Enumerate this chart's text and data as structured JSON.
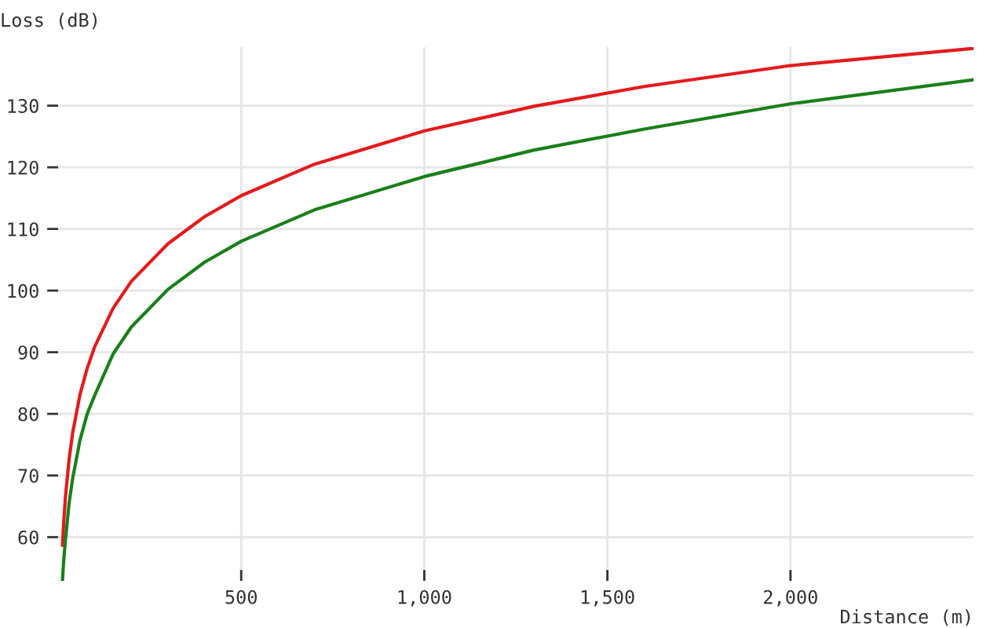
{
  "chart_data": {
    "type": "line",
    "xlabel": "Distance (m)",
    "ylabel": "Loss (dB)",
    "xlim": [
      0,
      2500
    ],
    "ylim": [
      52.9,
      139.5
    ],
    "xticks": [
      {
        "value": 500,
        "label": "500"
      },
      {
        "value": 1000,
        "label": "1,000"
      },
      {
        "value": 1500,
        "label": "1,500"
      },
      {
        "value": 2000,
        "label": "2,000"
      }
    ],
    "yticks": [
      60,
      70,
      80,
      90,
      100,
      110,
      120,
      130
    ],
    "grid": true,
    "marker": "none",
    "line_style": "solid",
    "series": [
      {
        "color": "#e41a1c",
        "x": [
          12,
          15,
          20,
          30,
          40,
          60,
          80,
          100,
          150,
          200,
          300,
          400,
          500,
          700,
          1000,
          1300,
          1600,
          2000,
          2500
        ],
        "values": [
          58.7,
          62.1,
          66.5,
          72.6,
          77.0,
          83.2,
          87.5,
          90.9,
          97.1,
          101.5,
          107.6,
          112.0,
          115.4,
          120.5,
          125.9,
          129.9,
          133.1,
          136.5,
          139.3
        ]
      },
      {
        "color": "#1a7f1a",
        "x": [
          12,
          15,
          20,
          30,
          40,
          60,
          80,
          100,
          150,
          200,
          300,
          400,
          500,
          700,
          1000,
          1300,
          1600,
          2000,
          2500
        ],
        "values": [
          53.0,
          56.0,
          59.5,
          65.5,
          69.6,
          75.8,
          80.1,
          83.0,
          89.7,
          94.1,
          100.2,
          104.6,
          108.0,
          113.1,
          118.5,
          122.8,
          126.2,
          130.3,
          134.2
        ]
      }
    ]
  }
}
